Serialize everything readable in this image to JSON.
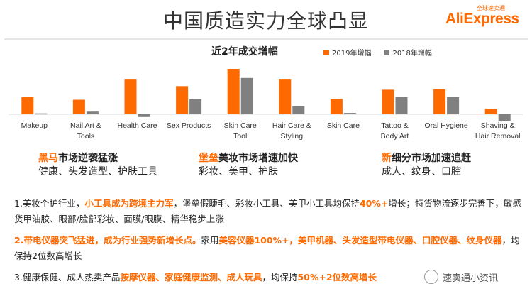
{
  "slide": {
    "title": "中国质造实力全球凸显",
    "logo": {
      "cn": "全球速卖通",
      "en": "AliExpress"
    },
    "colors": {
      "orange": "#ff6a00",
      "gray": "#808080"
    }
  },
  "chart_data": {
    "type": "bar",
    "title": "近2年成交增幅",
    "categories": [
      "Makeup",
      "Nail Art & Tools",
      "Health Care",
      "Sex Products",
      "Skin Care Tool",
      "Hair Care & Styling",
      "Skin Care",
      "Tattoo & Body Art",
      "Oral Hygiene",
      "Shaving & Hair Removal"
    ],
    "category_lines": [
      [
        "Makeup"
      ],
      [
        "Nail Art &",
        "Tools"
      ],
      [
        "Health Care"
      ],
      [
        "Sex Products"
      ],
      [
        "Skin Care",
        "Tool"
      ],
      [
        "Hair Care &",
        "Styling"
      ],
      [
        "Skin Care"
      ],
      [
        "Tattoo &",
        "Body Art"
      ],
      [
        "Oral Hygiene"
      ],
      [
        "Shaving &",
        "Hair Removal"
      ]
    ],
    "series": [
      {
        "name": "2019年增幅",
        "color": "#ff6a00",
        "values": [
          0.38,
          0.32,
          0.78,
          0.62,
          1.0,
          0.78,
          0.34,
          0.54,
          0.55,
          0.12
        ]
      },
      {
        "name": "2018年增幅",
        "color": "#808080",
        "values": [
          0.02,
          0.06,
          -0.06,
          0.33,
          0.8,
          0.18,
          0.03,
          0.38,
          0.38,
          -0.14
        ]
      }
    ],
    "ylim": [
      -0.2,
      1.05
    ],
    "grid": false,
    "legend_position": "top-right"
  },
  "highlights": [
    {
      "em": "黑马",
      "rest": "市场逆袭猛涨",
      "sub": "健康、头发造型、护肤工具"
    },
    {
      "em": "堡垒",
      "rest": "美妆市场增速加快",
      "sub": "彩妆、美甲、护肤"
    },
    {
      "em": "新",
      "rest": "细分市场加速追赶",
      "sub": "成人、纹身、口腔"
    }
  ],
  "paragraphs": [
    {
      "t1": "1.美妆个护行业，",
      "o1": "小工具成为跨境主力军",
      "t2": "，堡垒假睫毛、彩妆小工具、美甲小工具均保持",
      "o2": "40%+",
      "t3": "增长；特货物流逐步完善下，敏感货甲油胶、眼部/脸部彩妆、面膜/眼膜、精华稳步上涨"
    },
    {
      "o1": "2.带电仪器突飞猛进，成为行业强势新增长点。",
      "t1": "家用",
      "o2": "美容仪器100%+，美甲机器、头发造型带电仪器、口腔仪器、纹身仪器",
      "t2": "，均保持2位数高增长"
    },
    {
      "t1": "3.健康保健、成人热卖产品",
      "o1": "按摩仪器、家庭健康监测、成人玩具",
      "t2": "，均保持",
      "o2": "50%+2位数高增长"
    }
  ],
  "watermark": {
    "text": "速卖通小资讯"
  }
}
